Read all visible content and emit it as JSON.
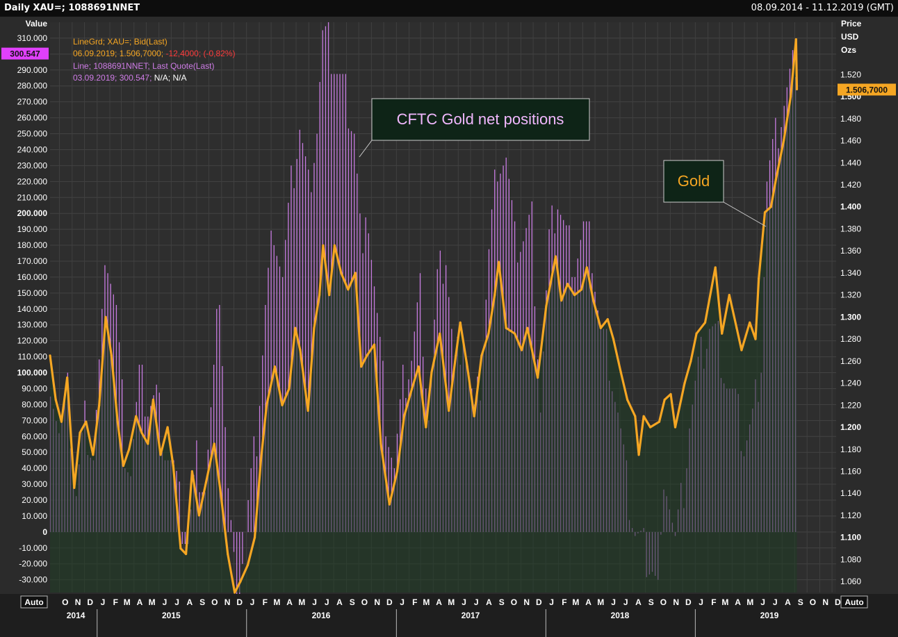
{
  "window": {
    "title": "Daily XAU=; 1088691NNET",
    "date_range": "08.09.2014 - 11.12.2019 (GMT)"
  },
  "axes": {
    "left_header": "Value",
    "right_header_1": "Price",
    "right_header_2": "USD",
    "right_header_3": "Ozs",
    "auto_left": "Auto",
    "auto_right": "Auto",
    "current_left_label": "300.547",
    "current_right_label": "1.506,7000"
  },
  "legend": {
    "line1": "LineGrd; XAU=; Bid(Last)",
    "line2_a": "06.09.2019; 1.506,7000; ",
    "line2_b": "-12,4000; (-0,82%)",
    "line3": "Line; 1088691NNET; Last Quote(Last)",
    "line4_a": "03.09.2019; 300.547; ",
    "line4_b": "N/A; N/A"
  },
  "annotations": {
    "cftc": "CFTC Gold net positions",
    "gold": "Gold"
  },
  "colors": {
    "background": "#2b2b2b",
    "grid": "#444444",
    "gold_line": "#f5a623",
    "cftc_bars": "#c77be0",
    "current_left_bg": "#e040fb",
    "current_right_bg": "#f5a623",
    "legend_orange": "#f5a623",
    "legend_red": "#ff3b3b",
    "legend_purple": "#d07de8"
  },
  "chart_data": {
    "type": "line",
    "left_axis": {
      "label": "Value",
      "ylim": [
        -38000,
        320000
      ],
      "ticks": [
        "-30.000",
        "-20.000",
        "-10.000",
        "0",
        "10.000",
        "20.000",
        "30.000",
        "40.000",
        "50.000",
        "60.000",
        "70.000",
        "80.000",
        "90.000",
        "100.000",
        "110.000",
        "120.000",
        "130.000",
        "140.000",
        "150.000",
        "160.000",
        "170.000",
        "180.000",
        "190.000",
        "200.000",
        "210.000",
        "220.000",
        "230.000",
        "240.000",
        "250.000",
        "260.000",
        "270.000",
        "280.000",
        "290.000",
        "300.000",
        "310.000"
      ],
      "tick_values": [
        -30000,
        -20000,
        -10000,
        0,
        10000,
        20000,
        30000,
        40000,
        50000,
        60000,
        70000,
        80000,
        90000,
        100000,
        110000,
        120000,
        130000,
        140000,
        150000,
        160000,
        170000,
        180000,
        190000,
        200000,
        210000,
        220000,
        230000,
        240000,
        250000,
        260000,
        270000,
        280000,
        290000,
        300000,
        310000
      ],
      "bold_ticks": [
        "0",
        "100.000",
        "200.000",
        "300.000"
      ]
    },
    "right_axis": {
      "label": "Price USD Ozs",
      "ylim": [
        1050,
        1567.5
      ],
      "ticks": [
        "1.060",
        "1.080",
        "1.100",
        "1.120",
        "1.140",
        "1.160",
        "1.180",
        "1.200",
        "1.220",
        "1.240",
        "1.260",
        "1.280",
        "1.300",
        "1.320",
        "1.340",
        "1.360",
        "1.380",
        "1.400",
        "1.420",
        "1.440",
        "1.460",
        "1.480",
        "1.500",
        "1.520"
      ],
      "tick_values": [
        1060,
        1080,
        1100,
        1120,
        1140,
        1160,
        1180,
        1200,
        1220,
        1240,
        1260,
        1280,
        1300,
        1320,
        1340,
        1360,
        1380,
        1400,
        1420,
        1440,
        1460,
        1480,
        1500,
        1520
      ],
      "bold_ticks": [
        "1.100",
        "1.200",
        "1.300",
        "1.400",
        "1.500"
      ]
    },
    "x_axis": {
      "start": "2014-09-08",
      "end": "2019-12-11",
      "month_labels": [
        "O",
        "N",
        "D",
        "J",
        "F",
        "M",
        "A",
        "M",
        "J",
        "J",
        "A",
        "S",
        "O",
        "N",
        "D",
        "J",
        "F",
        "M",
        "A",
        "M",
        "J",
        "J",
        "A",
        "S",
        "O",
        "N",
        "D",
        "J",
        "F",
        "M",
        "A",
        "M",
        "J",
        "J",
        "A",
        "S",
        "O",
        "N",
        "D",
        "J",
        "F",
        "M",
        "A",
        "M",
        "J",
        "J",
        "A",
        "S",
        "O",
        "N",
        "D",
        "J",
        "F",
        "M",
        "A",
        "M",
        "J",
        "J",
        "A",
        "S",
        "O",
        "N",
        "D"
      ],
      "year_labels": [
        "2014",
        "2015",
        "2016",
        "2017",
        "2018",
        "2019"
      ]
    },
    "series": [
      {
        "name": "XAU=; Bid(Last)",
        "axis": "right",
        "color": "#f5a623",
        "points": [
          [
            "2014-09-08",
            1265
          ],
          [
            "2014-09-22",
            1225
          ],
          [
            "2014-10-06",
            1205
          ],
          [
            "2014-10-20",
            1245
          ],
          [
            "2014-11-06",
            1145
          ],
          [
            "2014-11-20",
            1195
          ],
          [
            "2014-12-05",
            1205
          ],
          [
            "2014-12-22",
            1175
          ],
          [
            "2015-01-06",
            1220
          ],
          [
            "2015-01-22",
            1300
          ],
          [
            "2015-02-05",
            1265
          ],
          [
            "2015-02-20",
            1205
          ],
          [
            "2015-03-06",
            1165
          ],
          [
            "2015-03-20",
            1180
          ],
          [
            "2015-04-06",
            1210
          ],
          [
            "2015-04-20",
            1195
          ],
          [
            "2015-05-05",
            1185
          ],
          [
            "2015-05-18",
            1225
          ],
          [
            "2015-06-05",
            1175
          ],
          [
            "2015-06-22",
            1200
          ],
          [
            "2015-07-06",
            1165
          ],
          [
            "2015-07-24",
            1090
          ],
          [
            "2015-08-06",
            1085
          ],
          [
            "2015-08-21",
            1160
          ],
          [
            "2015-09-07",
            1120
          ],
          [
            "2015-09-24",
            1150
          ],
          [
            "2015-10-14",
            1185
          ],
          [
            "2015-10-30",
            1140
          ],
          [
            "2015-11-16",
            1085
          ],
          [
            "2015-12-03",
            1050
          ],
          [
            "2015-12-17",
            1060
          ],
          [
            "2016-01-04",
            1075
          ],
          [
            "2016-01-21",
            1100
          ],
          [
            "2016-02-05",
            1170
          ],
          [
            "2016-02-19",
            1220
          ],
          [
            "2016-03-10",
            1255
          ],
          [
            "2016-03-28",
            1220
          ],
          [
            "2016-04-14",
            1235
          ],
          [
            "2016-04-29",
            1290
          ],
          [
            "2016-05-11",
            1270
          ],
          [
            "2016-05-30",
            1215
          ],
          [
            "2016-06-14",
            1290
          ],
          [
            "2016-06-27",
            1320
          ],
          [
            "2016-07-06",
            1365
          ],
          [
            "2016-07-21",
            1320
          ],
          [
            "2016-08-03",
            1365
          ],
          [
            "2016-08-19",
            1340
          ],
          [
            "2016-09-05",
            1325
          ],
          [
            "2016-09-23",
            1340
          ],
          [
            "2016-10-07",
            1255
          ],
          [
            "2016-10-21",
            1265
          ],
          [
            "2016-11-08",
            1275
          ],
          [
            "2016-11-24",
            1185
          ],
          [
            "2016-12-15",
            1130
          ],
          [
            "2017-01-03",
            1160
          ],
          [
            "2017-01-20",
            1210
          ],
          [
            "2017-02-08",
            1235
          ],
          [
            "2017-02-24",
            1255
          ],
          [
            "2017-03-14",
            1200
          ],
          [
            "2017-03-28",
            1250
          ],
          [
            "2017-04-17",
            1285
          ],
          [
            "2017-05-09",
            1215
          ],
          [
            "2017-05-26",
            1265
          ],
          [
            "2017-06-06",
            1295
          ],
          [
            "2017-06-23",
            1255
          ],
          [
            "2017-07-10",
            1210
          ],
          [
            "2017-07-28",
            1265
          ],
          [
            "2017-08-14",
            1285
          ],
          [
            "2017-08-29",
            1320
          ],
          [
            "2017-09-08",
            1350
          ],
          [
            "2017-09-26",
            1290
          ],
          [
            "2017-10-17",
            1285
          ],
          [
            "2017-11-03",
            1270
          ],
          [
            "2017-11-17",
            1290
          ],
          [
            "2017-12-12",
            1245
          ],
          [
            "2018-01-02",
            1310
          ],
          [
            "2018-01-25",
            1355
          ],
          [
            "2018-02-08",
            1315
          ],
          [
            "2018-02-23",
            1330
          ],
          [
            "2018-03-12",
            1320
          ],
          [
            "2018-03-29",
            1325
          ],
          [
            "2018-04-11",
            1345
          ],
          [
            "2018-04-27",
            1315
          ],
          [
            "2018-05-15",
            1290
          ],
          [
            "2018-06-01",
            1298
          ],
          [
            "2018-06-15",
            1280
          ],
          [
            "2018-07-03",
            1250
          ],
          [
            "2018-07-19",
            1225
          ],
          [
            "2018-08-07",
            1210
          ],
          [
            "2018-08-16",
            1175
          ],
          [
            "2018-08-28",
            1210
          ],
          [
            "2018-09-13",
            1200
          ],
          [
            "2018-10-05",
            1205
          ],
          [
            "2018-10-18",
            1225
          ],
          [
            "2018-11-02",
            1230
          ],
          [
            "2018-11-13",
            1200
          ],
          [
            "2018-12-06",
            1240
          ],
          [
            "2018-12-21",
            1260
          ],
          [
            "2019-01-04",
            1285
          ],
          [
            "2019-01-25",
            1295
          ],
          [
            "2019-02-19",
            1345
          ],
          [
            "2019-03-07",
            1285
          ],
          [
            "2019-03-25",
            1320
          ],
          [
            "2019-04-12",
            1290
          ],
          [
            "2019-04-24",
            1270
          ],
          [
            "2019-05-14",
            1295
          ],
          [
            "2019-05-28",
            1280
          ],
          [
            "2019-06-05",
            1335
          ],
          [
            "2019-06-20",
            1395
          ],
          [
            "2019-07-05",
            1400
          ],
          [
            "2019-07-17",
            1425
          ],
          [
            "2019-08-05",
            1460
          ],
          [
            "2019-08-22",
            1500
          ],
          [
            "2019-09-04",
            1552
          ],
          [
            "2019-09-06",
            1506.7
          ]
        ]
      },
      {
        "name": "1088691NNET; Last Quote(Last)",
        "axis": "left",
        "color": "#c77be0",
        "points": [
          [
            "2014-09-09",
            100000
          ],
          [
            "2014-09-30",
            62000
          ],
          [
            "2014-10-21",
            85000
          ],
          [
            "2014-11-11",
            25000
          ],
          [
            "2014-12-02",
            70000
          ],
          [
            "2014-12-23",
            50000
          ],
          [
            "2015-01-13",
            130000
          ],
          [
            "2015-01-27",
            175000
          ],
          [
            "2015-02-17",
            140000
          ],
          [
            "2015-03-10",
            55000
          ],
          [
            "2015-03-24",
            40000
          ],
          [
            "2015-04-14",
            95000
          ],
          [
            "2015-05-05",
            80000
          ],
          [
            "2015-05-26",
            85000
          ],
          [
            "2015-06-16",
            55000
          ],
          [
            "2015-07-07",
            40000
          ],
          [
            "2015-07-28",
            5000
          ],
          [
            "2015-08-11",
            -5000
          ],
          [
            "2015-09-01",
            45000
          ],
          [
            "2015-09-22",
            30000
          ],
          [
            "2015-10-13",
            95000
          ],
          [
            "2015-10-27",
            155000
          ],
          [
            "2015-11-17",
            25000
          ],
          [
            "2015-12-01",
            -25000
          ],
          [
            "2015-12-15",
            -30000
          ],
          [
            "2016-01-05",
            15000
          ],
          [
            "2016-01-26",
            60000
          ],
          [
            "2016-02-16",
            140000
          ],
          [
            "2016-03-08",
            195000
          ],
          [
            "2016-03-29",
            160000
          ],
          [
            "2016-04-19",
            215000
          ],
          [
            "2016-05-10",
            255000
          ],
          [
            "2016-05-31",
            215000
          ],
          [
            "2016-06-21",
            255000
          ],
          [
            "2016-07-05",
            310000
          ],
          [
            "2016-07-19",
            305000
          ],
          [
            "2016-08-09",
            290000
          ],
          [
            "2016-08-30",
            275000
          ],
          [
            "2016-09-20",
            255000
          ],
          [
            "2016-10-11",
            165000
          ],
          [
            "2016-10-25",
            200000
          ],
          [
            "2016-11-15",
            135000
          ],
          [
            "2016-12-06",
            75000
          ],
          [
            "2016-12-27",
            40000
          ],
          [
            "2017-01-17",
            90000
          ],
          [
            "2017-02-07",
            110000
          ],
          [
            "2017-02-28",
            150000
          ],
          [
            "2017-03-21",
            75000
          ],
          [
            "2017-04-11",
            155000
          ],
          [
            "2017-05-02",
            175000
          ],
          [
            "2017-05-23",
            100000
          ],
          [
            "2017-06-13",
            130000
          ],
          [
            "2017-07-11",
            70000
          ],
          [
            "2017-07-25",
            95000
          ],
          [
            "2017-08-15",
            175000
          ],
          [
            "2017-09-05",
            235000
          ],
          [
            "2017-09-26",
            235000
          ],
          [
            "2017-10-17",
            180000
          ],
          [
            "2017-11-07",
            185000
          ],
          [
            "2017-11-28",
            195000
          ],
          [
            "2017-12-19",
            80000
          ],
          [
            "2018-01-09",
            180000
          ],
          [
            "2018-01-30",
            210000
          ],
          [
            "2018-02-20",
            185000
          ],
          [
            "2018-03-13",
            170000
          ],
          [
            "2018-04-03",
            190000
          ],
          [
            "2018-04-24",
            175000
          ],
          [
            "2018-05-15",
            125000
          ],
          [
            "2018-06-05",
            110000
          ],
          [
            "2018-06-26",
            75000
          ],
          [
            "2018-07-17",
            30000
          ],
          [
            "2018-08-07",
            0
          ],
          [
            "2018-08-28",
            -10000
          ],
          [
            "2018-09-18",
            -20000
          ],
          [
            "2018-10-02",
            -35000
          ],
          [
            "2018-10-23",
            35000
          ],
          [
            "2018-11-13",
            -5000
          ],
          [
            "2018-12-04",
            30000
          ],
          [
            "2018-12-18",
            70000
          ],
          [
            "2019-01-08",
            100000
          ],
          [
            "2019-02-05",
            130000
          ],
          [
            "2019-02-26",
            120000
          ],
          [
            "2019-03-19",
            95000
          ],
          [
            "2019-04-09",
            80000
          ],
          [
            "2019-04-30",
            55000
          ],
          [
            "2019-05-21",
            70000
          ],
          [
            "2019-06-11",
            110000
          ],
          [
            "2019-06-25",
            220000
          ],
          [
            "2019-07-16",
            245000
          ],
          [
            "2019-08-06",
            270000
          ],
          [
            "2019-08-27",
            290000
          ],
          [
            "2019-09-03",
            300547
          ]
        ]
      }
    ]
  }
}
